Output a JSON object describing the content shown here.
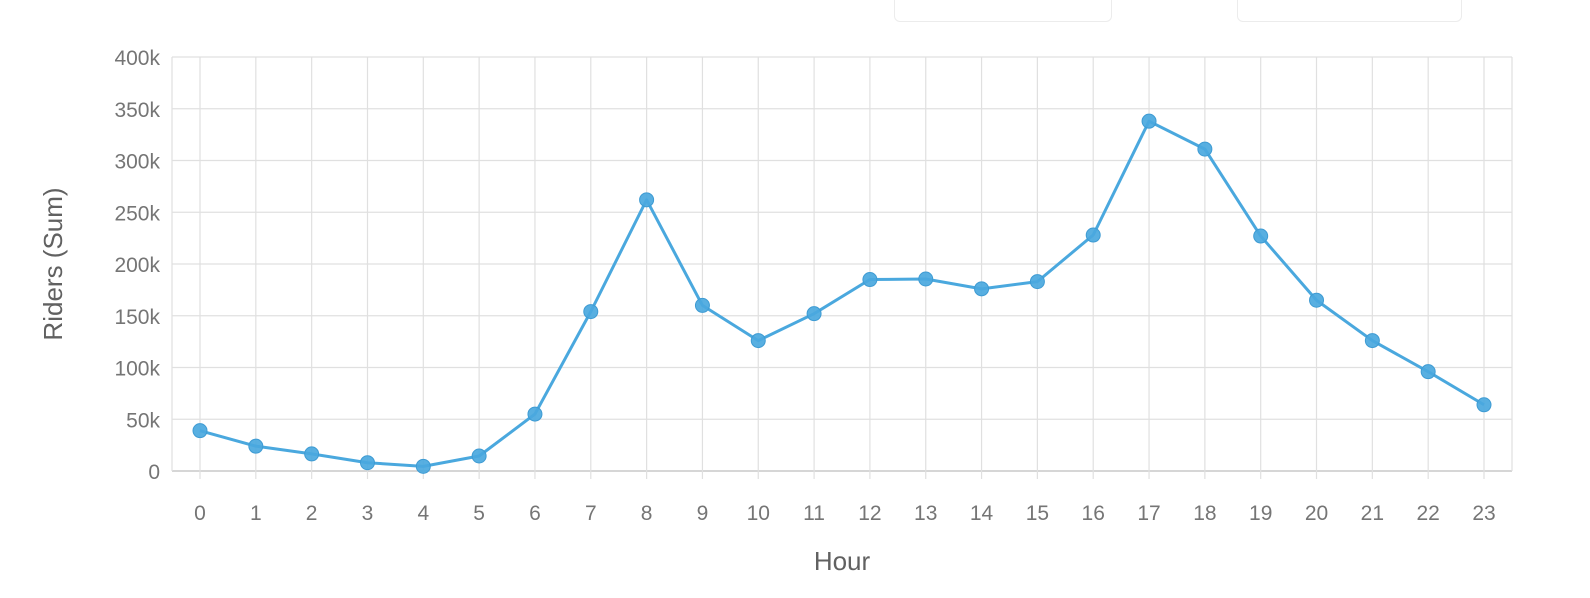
{
  "chart_data": {
    "type": "line",
    "title": "",
    "xlabel": "Hour",
    "ylabel": "Riders (Sum)",
    "categories": [
      "0",
      "1",
      "2",
      "3",
      "4",
      "5",
      "6",
      "7",
      "8",
      "9",
      "10",
      "11",
      "12",
      "13",
      "14",
      "15",
      "16",
      "17",
      "18",
      "19",
      "20",
      "21",
      "22",
      "23"
    ],
    "series": [
      {
        "color": "#4aa8de",
        "values": [
          39000,
          24000,
          16500,
          8000,
          4500,
          14500,
          55000,
          154000,
          262000,
          160000,
          126000,
          152000,
          185000,
          185500,
          176000,
          183000,
          228000,
          338000,
          311000,
          227000,
          165000,
          126000,
          96000,
          64000
        ]
      }
    ],
    "ylim": [
      0,
      400000
    ],
    "yticks": [
      0,
      50000,
      100000,
      150000,
      200000,
      250000,
      300000,
      350000,
      400000
    ],
    "ytick_labels": [
      "0",
      "50k",
      "100k",
      "150k",
      "200k",
      "250k",
      "300k",
      "350k",
      "400k"
    ],
    "grid": true,
    "legend": "none",
    "colors": {
      "line": "#4aa8de",
      "grid": "#e0e0e0",
      "axis_text": "#757575",
      "axis_title": "#616161"
    }
  }
}
